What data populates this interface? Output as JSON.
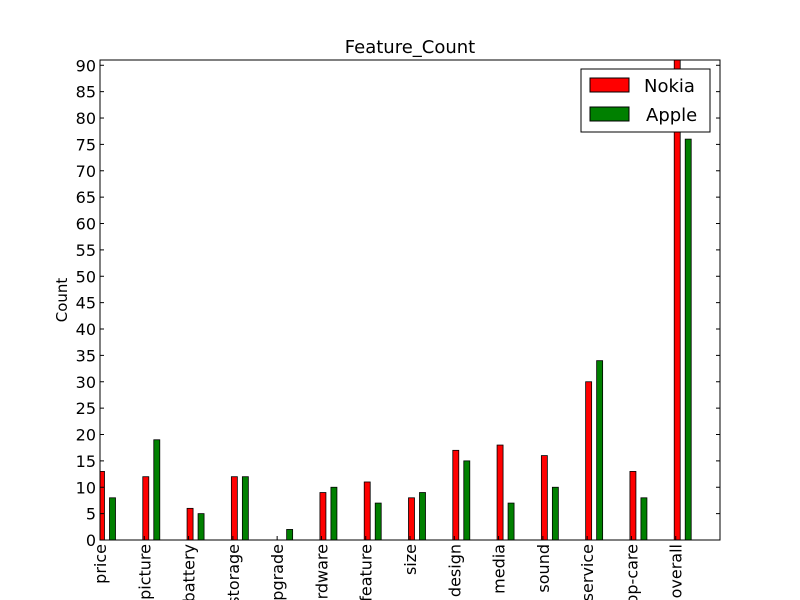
{
  "chart_data": {
    "type": "bar",
    "title": "Feature_Count",
    "xlabel": "",
    "ylabel": "Count",
    "ylim": [
      0,
      91
    ],
    "yticks": [
      0,
      5,
      10,
      15,
      20,
      25,
      30,
      35,
      40,
      45,
      50,
      55,
      60,
      65,
      70,
      75,
      80,
      85,
      90
    ],
    "categories": [
      "price",
      "picture",
      "battery",
      "storage",
      "upgrade",
      "hardware",
      "feature",
      "size",
      "design",
      "media",
      "sound",
      "service",
      "app-care",
      "overall"
    ],
    "series": [
      {
        "name": "Nokia",
        "color": "#ff0000",
        "values": [
          13,
          12,
          6,
          12,
          0,
          9,
          11,
          8,
          17,
          18,
          16,
          30,
          13,
          91
        ]
      },
      {
        "name": "Apple",
        "color": "#008000",
        "values": [
          8,
          19,
          5,
          12,
          2,
          10,
          7,
          9,
          15,
          7,
          10,
          34,
          8,
          76
        ]
      }
    ],
    "legend": "top-right",
    "grid": false
  }
}
